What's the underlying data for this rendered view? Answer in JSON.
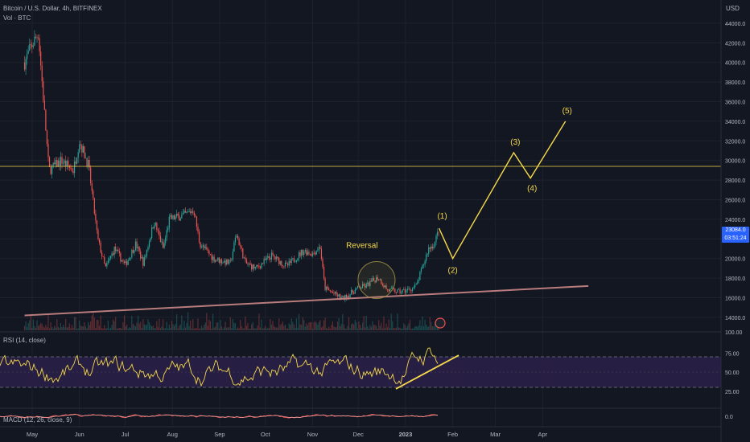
{
  "header": {
    "symbol_title": "Bitcoin / U.S. Dollar, 4h, BITFINEX",
    "volume_label": "Vol · BTC",
    "currency": "USD"
  },
  "price_badge": {
    "price": "23084.0",
    "countdown": "03:51:24"
  },
  "rsi_panel": {
    "title": "RSI (14, close)"
  },
  "macd_panel": {
    "title": "MACD (12, 26, close, 9)"
  },
  "colors": {
    "background": "#131722",
    "candle_up": "#26a69a",
    "candle_down": "#ef5350",
    "annotation": "#f5d84a",
    "trendline": "#b87c7c",
    "rsi_band": "#2a1f47",
    "badge": "#2962ff"
  },
  "chart_data": [
    {
      "type": "line",
      "title": "Bitcoin / U.S. Dollar, 4h, BITFINEX",
      "ylabel": "USD",
      "ylim": [
        13000,
        45000
      ],
      "scale": "linear",
      "x_ticks": [
        "May",
        "Jun",
        "Jul",
        "Aug",
        "Sep",
        "Oct",
        "Nov",
        "Dec",
        "2023",
        "Feb",
        "Mar",
        "Apr"
      ],
      "y_ticks": [
        14000,
        16000,
        18000,
        20000,
        22000,
        24000,
        26000,
        28000,
        30000,
        32000,
        34000,
        36000,
        38000,
        40000,
        42000,
        44000
      ],
      "y_tick_labels": [
        "14000.0",
        "16000.0",
        "18000.0",
        "20000.0",
        "22000.0",
        "24000.0",
        "26000.0",
        "28000.0",
        "30000.0",
        "32000.0",
        "34000.0",
        "36000.0",
        "38000.0",
        "40000.0",
        "42000.0",
        "44000.0"
      ],
      "price_path": [
        [
          "Apr 26",
          40000
        ],
        [
          "Apr 30",
          41500
        ],
        [
          "May 5",
          43000
        ],
        [
          "May 9",
          35000
        ],
        [
          "May 12",
          29000
        ],
        [
          "May 20",
          30000
        ],
        [
          "May 28",
          29000
        ],
        [
          "Jun 1",
          32000
        ],
        [
          "Jun 7",
          29500
        ],
        [
          "Jun 13",
          22000
        ],
        [
          "Jun 18",
          19000
        ],
        [
          "Jun 24",
          21000
        ],
        [
          "Jul 1",
          19300
        ],
        [
          "Jul 8",
          21500
        ],
        [
          "Jul 13",
          19500
        ],
        [
          "Jul 20",
          23800
        ],
        [
          "Jul 26",
          21000
        ],
        [
          "Jul 30",
          24000
        ],
        [
          "Aug 10",
          24500
        ],
        [
          "Aug 15",
          25000
        ],
        [
          "Aug 19",
          21500
        ],
        [
          "Aug 28",
          20000
        ],
        [
          "Sep 8",
          19500
        ],
        [
          "Sep 12",
          22500
        ],
        [
          "Sep 18",
          19500
        ],
        [
          "Sep 25",
          19000
        ],
        [
          "Oct 5",
          20300
        ],
        [
          "Oct 15",
          19200
        ],
        [
          "Oct 26",
          20800
        ],
        [
          "Nov 1",
          20500
        ],
        [
          "Nov 6",
          21200
        ],
        [
          "Nov 9",
          17000
        ],
        [
          "Nov 14",
          16500
        ],
        [
          "Nov 21",
          15900
        ],
        [
          "Dec 1",
          17000
        ],
        [
          "Dec 6",
          17200
        ],
        [
          "Dec 14",
          18100
        ],
        [
          "Dec 20",
          16800
        ],
        [
          "Dec 28",
          16600
        ],
        [
          "Jan 3",
          16800
        ],
        [
          "Jan 8",
          17200
        ],
        [
          "Jan 13",
          19500
        ],
        [
          "Jan 16",
          21000
        ],
        [
          "Jan 20",
          21500
        ],
        [
          "Jan 23",
          23084
        ]
      ],
      "annotations": {
        "horizontal_level": 29400,
        "reversal_label": "Reversal",
        "wave_labels": [
          "(1)",
          "(2)",
          "(3)",
          "(4)",
          "(5)"
        ],
        "wave_projection": [
          [
            "Jan 23",
            23084
          ],
          [
            "Feb 1",
            20000
          ],
          [
            "Mar 13",
            30800
          ],
          [
            "Mar 24",
            28200
          ],
          [
            "Apr 16",
            34000
          ]
        ],
        "trendline": [
          [
            "Apr 26",
            14200
          ],
          [
            "May 1 2023",
            17200
          ]
        ]
      }
    },
    {
      "type": "line",
      "title": "RSI (14, close)",
      "ylim": [
        0,
        100
      ],
      "y_tick_labels": [
        "100.00",
        "75.00",
        "50.00",
        "25.00"
      ],
      "bands": [
        30,
        70
      ],
      "trendline": [
        [
          30,
          30
        ],
        [
          56,
          70
        ]
      ]
    },
    {
      "type": "line",
      "title": "MACD (12, 26, close, 9)",
      "y_tick_labels": [
        "0.0"
      ]
    }
  ]
}
